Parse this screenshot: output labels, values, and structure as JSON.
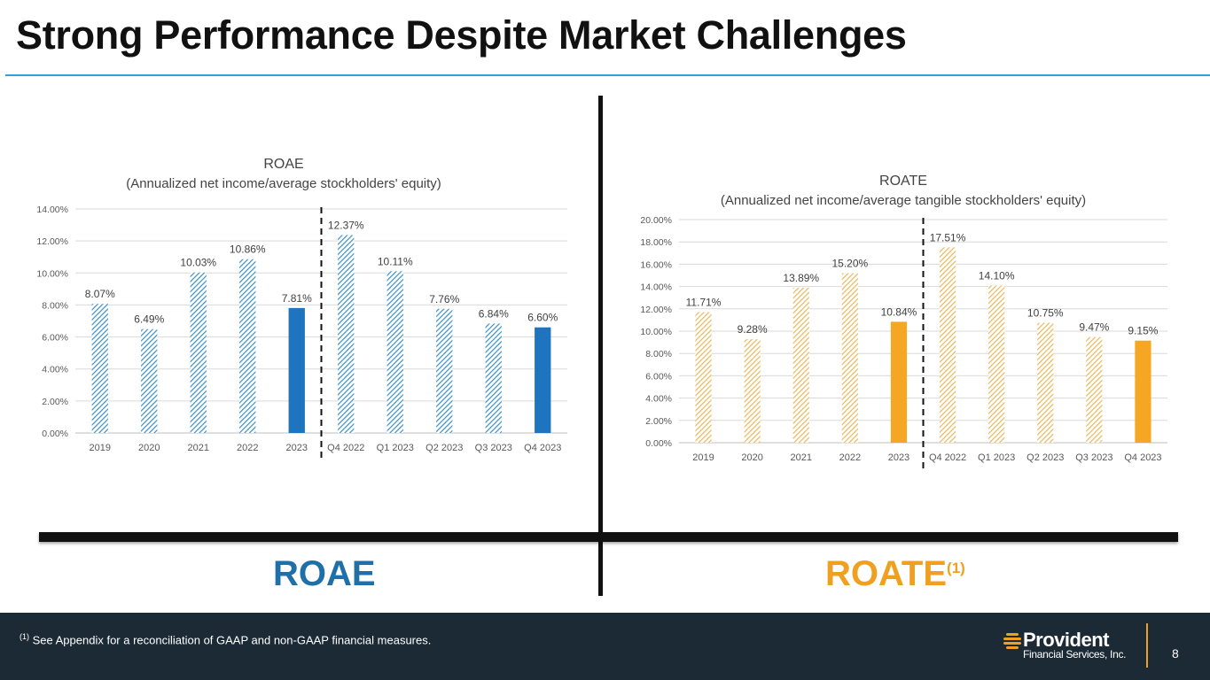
{
  "page": {
    "title": "Strong Performance Despite Market Challenges",
    "label_left": "ROAE",
    "label_right": "ROATE",
    "label_right_sup": "(1)",
    "footnote_sup": "(1)",
    "footnote": " See Appendix for a reconciliation of GAAP and non-GAAP financial measures.",
    "logo_name": "Provident",
    "logo_sub": "Financial Services, Inc.",
    "page_number": "8"
  },
  "colors": {
    "roae_color": "#1f74c0",
    "roae_hatch": "#3a8fc8",
    "roate_color": "#f5a623",
    "roate_hatch": "#e9b75a",
    "accent_rule": "#2aa3d8",
    "footer_bg": "#1c2a36"
  },
  "chart_data": [
    {
      "type": "bar",
      "title": "ROAE",
      "subtitle": "(Annualized net income/average stockholders' equity)",
      "categories": [
        "2019",
        "2020",
        "2021",
        "2022",
        "2023",
        "Q4 2022",
        "Q1 2023",
        "Q2 2023",
        "Q3 2023",
        "Q4 2023"
      ],
      "values": [
        8.07,
        6.49,
        10.03,
        10.86,
        7.81,
        12.37,
        10.11,
        7.76,
        6.84,
        6.6
      ],
      "value_labels": [
        "8.07%",
        "6.49%",
        "10.03%",
        "10.86%",
        "7.81%",
        "12.37%",
        "10.11%",
        "7.76%",
        "6.84%",
        "6.60%"
      ],
      "solid": [
        false,
        false,
        false,
        false,
        true,
        false,
        false,
        false,
        false,
        true
      ],
      "ylim": [
        0,
        14
      ],
      "ytick_labels": [
        "0.00%",
        "2.00%",
        "4.00%",
        "6.00%",
        "8.00%",
        "10.00%",
        "12.00%",
        "14.00%"
      ],
      "grid": true
    },
    {
      "type": "bar",
      "title": "ROATE",
      "subtitle": "(Annualized net income/average tangible stockholders' equity)",
      "categories": [
        "2019",
        "2020",
        "2021",
        "2022",
        "2023",
        "Q4 2022",
        "Q1 2023",
        "Q2 2023",
        "Q3 2023",
        "Q4 2023"
      ],
      "values": [
        11.71,
        9.28,
        13.89,
        15.2,
        10.84,
        17.51,
        14.1,
        10.75,
        9.47,
        9.15
      ],
      "value_labels": [
        "11.71%",
        "9.28%",
        "13.89%",
        "15.20%",
        "10.84%",
        "17.51%",
        "14.10%",
        "10.75%",
        "9.47%",
        "9.15%"
      ],
      "solid": [
        false,
        false,
        false,
        false,
        true,
        false,
        false,
        false,
        false,
        true
      ],
      "ylim": [
        0,
        20
      ],
      "ytick_labels": [
        "0.00%",
        "2.00%",
        "4.00%",
        "6.00%",
        "8.00%",
        "10.00%",
        "12.00%",
        "14.00%",
        "16.00%",
        "18.00%",
        "20.00%"
      ],
      "grid": true
    }
  ]
}
